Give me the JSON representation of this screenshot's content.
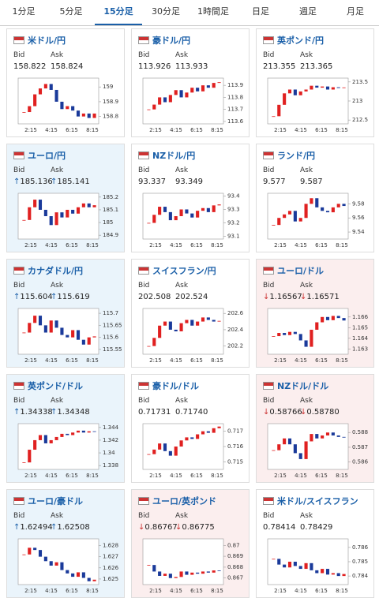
{
  "tabs": [
    "1分足",
    "5分足",
    "15分足",
    "30分足",
    "1時間足",
    "日足",
    "週足",
    "月足"
  ],
  "active_tab": 2,
  "cards": [
    {
      "name": "米ドル/円",
      "bid": "158.822",
      "ask": "158.824",
      "trend": null,
      "chart": {
        "ylim": [
          158.75,
          159.06
        ],
        "yticks": [
          159,
          158.9,
          158.8
        ],
        "xticks": [
          "2:15",
          "4:15",
          "6:15",
          "8:15"
        ],
        "values": [
          158.83,
          158.87,
          158.95,
          158.99,
          159.02,
          158.98,
          158.9,
          158.85,
          158.87,
          158.84,
          158.8,
          158.82,
          158.79,
          158.82
        ]
      }
    },
    {
      "name": "豪ドル/円",
      "bid": "113.926",
      "ask": "113.933",
      "trend": null,
      "chart": {
        "ylim": [
          113.58,
          113.96
        ],
        "yticks": [
          113.9,
          113.8,
          113.7,
          113.6
        ],
        "xticks": [
          "2:15",
          "4:15",
          "6:15",
          "8:15"
        ],
        "values": [
          113.7,
          113.74,
          113.8,
          113.76,
          113.82,
          113.86,
          113.8,
          113.84,
          113.88,
          113.85,
          113.9,
          113.88,
          113.92,
          113.926
        ]
      }
    },
    {
      "name": "英ポンド/円",
      "bid": "213.355",
      "ask": "213.365",
      "trend": null,
      "chart": {
        "ylim": [
          212.4,
          213.6
        ],
        "yticks": [
          213.5,
          213,
          212.5
        ],
        "xticks": [
          "2:15",
          "4:15",
          "6:15",
          "8:15"
        ],
        "values": [
          212.6,
          212.9,
          213.2,
          213.3,
          213.15,
          213.25,
          213.3,
          213.4,
          213.35,
          213.38,
          213.3,
          213.36,
          213.34,
          213.355
        ]
      }
    },
    {
      "name": "ユーロ/円",
      "bid": "185.136",
      "ask": "185.141",
      "trend": "up",
      "chart": {
        "ylim": [
          184.87,
          185.23
        ],
        "yticks": [
          185.2,
          185.1,
          185,
          184.9
        ],
        "xticks": [
          "2:15",
          "4:15",
          "6:15",
          "8:15"
        ],
        "values": [
          185.02,
          185.12,
          185.18,
          185.1,
          185.05,
          184.98,
          185.08,
          185.04,
          185.1,
          185.07,
          185.12,
          185.15,
          185.12,
          185.136
        ]
      }
    },
    {
      "name": "NZドル/円",
      "bid": "93.337",
      "ask": "93.349",
      "trend": null,
      "chart": {
        "ylim": [
          93.08,
          93.42
        ],
        "yticks": [
          93.4,
          93.3,
          93.2,
          93.1
        ],
        "xticks": [
          "2:15",
          "4:15",
          "6:15",
          "8:15"
        ],
        "values": [
          93.2,
          93.26,
          93.32,
          93.28,
          93.22,
          93.25,
          93.3,
          93.27,
          93.24,
          93.29,
          93.31,
          93.28,
          93.33,
          93.337
        ]
      }
    },
    {
      "name": "ランド/円",
      "bid": "9.577",
      "ask": "9.587",
      "trend": null,
      "chart": {
        "ylim": [
          9.53,
          9.595
        ],
        "yticks": [
          9.58,
          9.56,
          9.54
        ],
        "xticks": [
          "2:15",
          "4:15",
          "6:15",
          "8:15"
        ],
        "values": [
          9.55,
          9.56,
          9.565,
          9.57,
          9.555,
          9.56,
          9.58,
          9.588,
          9.575,
          9.57,
          9.568,
          9.575,
          9.58,
          9.577
        ]
      }
    },
    {
      "name": "カナダドル/円",
      "bid": "115.604",
      "ask": "115.619",
      "trend": "up",
      "chart": {
        "ylim": [
          115.53,
          115.72
        ],
        "yticks": [
          115.7,
          115.65,
          115.6,
          115.55
        ],
        "xticks": [
          "2:15",
          "4:15",
          "6:15",
          "8:15"
        ],
        "values": [
          115.62,
          115.66,
          115.69,
          115.65,
          115.62,
          115.67,
          115.64,
          115.61,
          115.6,
          115.63,
          115.59,
          115.57,
          115.6,
          115.604
        ]
      }
    },
    {
      "name": "スイスフラン/円",
      "bid": "202.508",
      "ask": "202.524",
      "trend": null,
      "chart": {
        "ylim": [
          202.1,
          202.66
        ],
        "yticks": [
          202.6,
          202.4,
          202.2
        ],
        "xticks": [
          "2:15",
          "4:15",
          "6:15",
          "8:15"
        ],
        "values": [
          202.2,
          202.3,
          202.45,
          202.5,
          202.4,
          202.38,
          202.48,
          202.52,
          202.45,
          202.5,
          202.55,
          202.52,
          202.5,
          202.508
        ]
      }
    },
    {
      "name": "ユーロ/ドル",
      "bid": "1.16567",
      "ask": "1.16571",
      "trend": "down",
      "chart": {
        "ylim": [
          1.1625,
          1.1668
        ],
        "yticks": [
          1.166,
          1.165,
          1.164,
          1.163
        ],
        "xticks": [
          "2:15",
          "4:15",
          "6:15",
          "8:15"
        ],
        "values": [
          1.1642,
          1.1645,
          1.1643,
          1.1646,
          1.1644,
          1.1638,
          1.1632,
          1.1648,
          1.1655,
          1.166,
          1.1657,
          1.1661,
          1.1659,
          1.16567
        ]
      }
    },
    {
      "name": "英ポンド/ドル",
      "bid": "1.34338",
      "ask": "1.34348",
      "trend": "up",
      "chart": {
        "ylim": [
          1.3374,
          1.3446
        ],
        "yticks": [
          1.344,
          1.342,
          1.34,
          1.338
        ],
        "xticks": [
          "2:15",
          "4:15",
          "6:15",
          "8:15"
        ],
        "values": [
          1.3385,
          1.3405,
          1.342,
          1.3428,
          1.3415,
          1.342,
          1.3425,
          1.343,
          1.3428,
          1.3432,
          1.3435,
          1.3432,
          1.3434,
          1.34338
        ]
      }
    },
    {
      "name": "豪ドル/ドル",
      "bid": "0.71731",
      "ask": "0.71740",
      "trend": null,
      "chart": {
        "ylim": [
          0.7145,
          0.7175
        ],
        "yticks": [
          0.717,
          0.716,
          0.715
        ],
        "xticks": [
          "2:15",
          "4:15",
          "6:15",
          "8:15"
        ],
        "values": [
          0.7155,
          0.7158,
          0.7162,
          0.7157,
          0.7154,
          0.716,
          0.7164,
          0.7166,
          0.7165,
          0.7168,
          0.717,
          0.7169,
          0.7172,
          0.71731
        ]
      }
    },
    {
      "name": "NZドル/ドル",
      "bid": "0.58766",
      "ask": "0.58780",
      "trend": "down",
      "chart": {
        "ylim": [
          0.5855,
          0.5886
        ],
        "yticks": [
          0.588,
          0.587,
          0.586
        ],
        "xticks": [
          "2:15",
          "4:15",
          "6:15",
          "8:15"
        ],
        "values": [
          0.5868,
          0.5872,
          0.5876,
          0.5872,
          0.5866,
          0.5862,
          0.5874,
          0.5879,
          0.5876,
          0.5878,
          0.588,
          0.5878,
          0.5877,
          0.58766
        ]
      }
    },
    {
      "name": "ユーロ/豪ドル",
      "bid": "1.62494",
      "ask": "1.62508",
      "trend": "up",
      "chart": {
        "ylim": [
          1.6245,
          1.6286
        ],
        "yticks": [
          1.628,
          1.627,
          1.626,
          1.625
        ],
        "xticks": [
          "2:15",
          "4:15",
          "6:15",
          "8:15"
        ],
        "values": [
          1.6272,
          1.6278,
          1.6276,
          1.627,
          1.6266,
          1.6262,
          1.6265,
          1.6258,
          1.6255,
          1.6252,
          1.6256,
          1.6251,
          1.6248,
          1.62494
        ]
      }
    },
    {
      "name": "ユーロ/英ポンド",
      "bid": "0.86767",
      "ask": "0.86775",
      "trend": "down",
      "chart": {
        "ylim": [
          0.8664,
          0.8706
        ],
        "yticks": [
          0.87,
          0.869,
          0.868,
          0.867
        ],
        "xticks": [
          "2:15",
          "4:15",
          "6:15",
          "8:15"
        ],
        "values": [
          0.8682,
          0.8676,
          0.8672,
          0.8674,
          0.867,
          0.8671,
          0.8676,
          0.8673,
          0.8675,
          0.8674,
          0.8676,
          0.8675,
          0.8677,
          0.86767
        ]
      }
    },
    {
      "name": "米ドル/スイスフラン",
      "bid": "0.78414",
      "ask": "0.78429",
      "trend": null,
      "chart": {
        "ylim": [
          0.7834,
          0.7866
        ],
        "yticks": [
          0.786,
          0.785,
          0.784
        ],
        "xticks": [
          "2:15",
          "4:15",
          "6:15",
          "8:15"
        ],
        "values": [
          0.7852,
          0.7848,
          0.7846,
          0.785,
          0.7847,
          0.7845,
          0.7849,
          0.7844,
          0.7842,
          0.7845,
          0.7841,
          0.7842,
          0.784,
          0.78414
        ]
      }
    }
  ],
  "labels": {
    "bid": "Bid",
    "ask": "Ask"
  }
}
